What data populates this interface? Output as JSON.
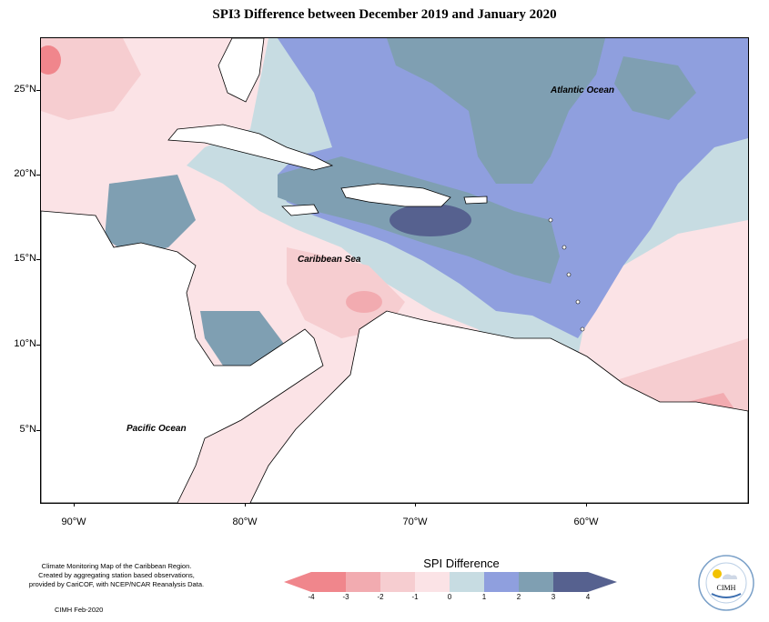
{
  "title": "SPI3 Difference between December 2019 and January 2020",
  "latitude_labels": [
    "25°N",
    "20°N",
    "15°N",
    "10°N",
    "5°N"
  ],
  "longitude_labels": [
    "90°W",
    "80°W",
    "70°W",
    "60°W"
  ],
  "ocean_labels": {
    "atlantic": "Atlantic Ocean",
    "caribbean": "Caribbean Sea",
    "pacific": "Pacific Ocean"
  },
  "caption_lines": [
    "Climate Monitoring Map of the Caribbean Region.",
    "Created by aggregating station based observations,",
    "provided by CariCOF, with NCEP/NCAR Reanalysis Data."
  ],
  "credit": "CIMH Feb-2020",
  "legend": {
    "title": "SPI Difference",
    "tick_labels": [
      "-4",
      "-3",
      "-2",
      "-1",
      "0",
      "1",
      "2",
      "3",
      "4"
    ],
    "colors": [
      "#f0868c",
      "#f2abb0",
      "#f6cdd0",
      "#fbe3e6",
      "#c7dce2",
      "#8f9fde",
      "#7f9fb2",
      "#56618f"
    ]
  },
  "logo_text": "CIMH",
  "colors": {
    "deep_dry": "#f0868c",
    "dry": "#f2abb0",
    "slightly_dry": "#f6cdd0",
    "near_normal_dry": "#fbe3e6",
    "near_normal_wet": "#c7dce2",
    "wet": "#8f9fde",
    "very_wet": "#7f9fb2",
    "extreme_wet": "#56618f",
    "land": "#ffffff"
  }
}
